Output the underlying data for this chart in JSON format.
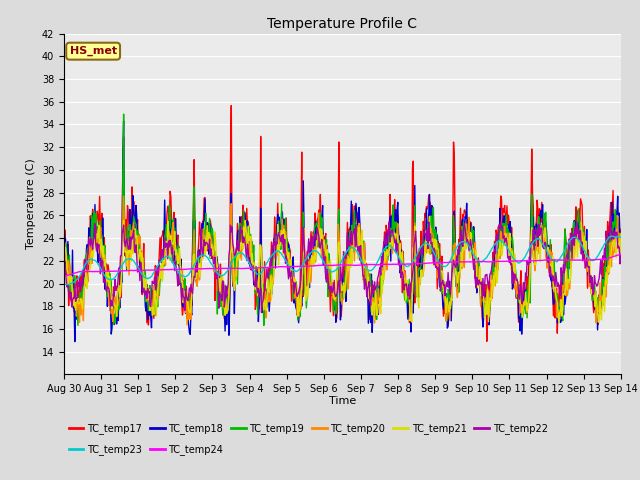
{
  "title": "Temperature Profile C",
  "xlabel": "Time",
  "ylabel": "Temperature (C)",
  "ylim": [
    12,
    42
  ],
  "yticks": [
    14,
    16,
    18,
    20,
    22,
    24,
    26,
    28,
    30,
    32,
    34,
    36,
    38,
    40,
    42
  ],
  "xtick_labels": [
    "Aug 30",
    "Aug 31",
    "Sep 1",
    "Sep 2",
    "Sep 3",
    "Sep 4",
    "Sep 5",
    "Sep 6",
    "Sep 7",
    "Sep 8",
    "Sep 9",
    "Sep 10",
    "Sep 11",
    "Sep 12",
    "Sep 13",
    "Sep 14"
  ],
  "annotation_text": "HS_met",
  "annotation_color": "#8B0000",
  "annotation_bg": "#FFFF99",
  "annotation_edge": "#8B6914",
  "fig_bg": "#DCDCDC",
  "plot_bg": "#EBEBEB",
  "grid_color": "#FFFFFF",
  "series_colors": {
    "TC_temp17": "#FF0000",
    "TC_temp18": "#0000CC",
    "TC_temp19": "#00BB00",
    "TC_temp20": "#FF8800",
    "TC_temp21": "#DDDD00",
    "TC_temp22": "#AA00AA",
    "TC_temp23": "#00CCCC",
    "TC_temp24": "#FF00FF"
  },
  "legend_order": [
    "TC_temp17",
    "TC_temp18",
    "TC_temp19",
    "TC_temp20",
    "TC_temp21",
    "TC_temp22",
    "TC_temp23",
    "TC_temp24"
  ],
  "legend_ncol_row1": 6,
  "title_fontsize": 10,
  "axis_label_fontsize": 8,
  "tick_fontsize": 7,
  "legend_fontsize": 7,
  "linewidth": 1.0
}
